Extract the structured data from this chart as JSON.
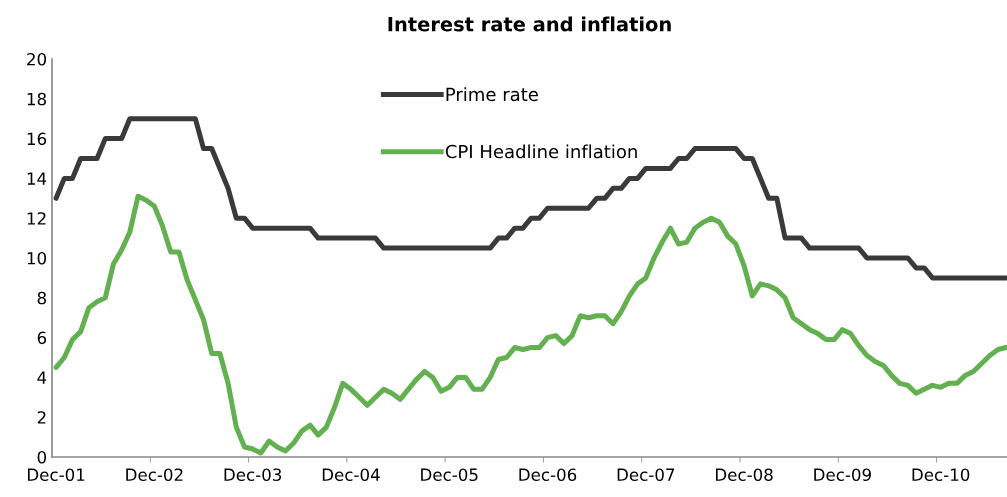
{
  "chart_data": {
    "type": "line",
    "title": "Interest rate and inflation",
    "categories": [
      "Dec-01",
      null,
      null,
      null,
      null,
      null,
      null,
      null,
      null,
      null,
      null,
      null,
      "Dec-02",
      null,
      null,
      null,
      null,
      null,
      null,
      null,
      null,
      null,
      null,
      null,
      "Dec-03",
      null,
      null,
      null,
      null,
      null,
      null,
      null,
      null,
      null,
      null,
      null,
      "Dec-04",
      null,
      null,
      null,
      null,
      null,
      null,
      null,
      null,
      null,
      null,
      null,
      "Dec-05",
      null,
      null,
      null,
      null,
      null,
      null,
      null,
      null,
      null,
      null,
      null,
      "Dec-06",
      null,
      null,
      null,
      null,
      null,
      null,
      null,
      null,
      null,
      null,
      null,
      "Dec-07",
      null,
      null,
      null,
      null,
      null,
      null,
      null,
      null,
      null,
      null,
      null,
      "Dec-08",
      null,
      null,
      null,
      null,
      null,
      null,
      null,
      null,
      null,
      null,
      null,
      "Dec-09",
      null,
      null,
      null,
      null,
      null,
      null,
      null,
      null,
      null,
      null,
      null,
      "Dec-10",
      null,
      null,
      null,
      null,
      null,
      null,
      null,
      null
    ],
    "series": [
      {
        "name": "Prime rate",
        "color": "#3a3a3a",
        "values": [
          13,
          14,
          14,
          15,
          15,
          15,
          16,
          16,
          16,
          17,
          17,
          17,
          17,
          17,
          17,
          17,
          17,
          17,
          15.5,
          15.5,
          14.5,
          13.5,
          12,
          12,
          11.5,
          11.5,
          11.5,
          11.5,
          11.5,
          11.5,
          11.5,
          11.5,
          11,
          11,
          11,
          11,
          11,
          11,
          11,
          11,
          10.5,
          10.5,
          10.5,
          10.5,
          10.5,
          10.5,
          10.5,
          10.5,
          10.5,
          10.5,
          10.5,
          10.5,
          10.5,
          10.5,
          11,
          11,
          11.5,
          11.5,
          12,
          12,
          12.5,
          12.5,
          12.5,
          12.5,
          12.5,
          12.5,
          13,
          13,
          13.5,
          13.5,
          14,
          14,
          14.5,
          14.5,
          14.5,
          14.5,
          15,
          15,
          15.5,
          15.5,
          15.5,
          15.5,
          15.5,
          15.5,
          15,
          15,
          14,
          13,
          13,
          11,
          11,
          11,
          10.5,
          10.5,
          10.5,
          10.5,
          10.5,
          10.5,
          10.5,
          10,
          10,
          10,
          10,
          10,
          10,
          9.5,
          9.5,
          9,
          9,
          9,
          9,
          9,
          9,
          9,
          9,
          9,
          9
        ]
      },
      {
        "name": "CPI Headline inflation",
        "color": "#62b04f",
        "values": [
          4.5,
          5.0,
          5.9,
          6.3,
          7.5,
          7.8,
          8.0,
          9.7,
          10.4,
          11.3,
          13.1,
          12.9,
          12.6,
          11.6,
          10.3,
          10.3,
          8.9,
          7.9,
          6.9,
          5.2,
          5.2,
          3.7,
          1.5,
          0.5,
          0.4,
          0.2,
          0.8,
          0.5,
          0.3,
          0.7,
          1.3,
          1.6,
          1.1,
          1.5,
          2.5,
          3.7,
          3.4,
          3.0,
          2.6,
          3.0,
          3.4,
          3.2,
          2.9,
          3.4,
          3.9,
          4.3,
          4.0,
          3.3,
          3.5,
          4.0,
          4.0,
          3.4,
          3.4,
          4.0,
          4.9,
          5.0,
          5.5,
          5.4,
          5.5,
          5.5,
          6.0,
          6.1,
          5.7,
          6.1,
          7.1,
          7.0,
          7.1,
          7.1,
          6.7,
          7.3,
          8.1,
          8.7,
          9.0,
          10.0,
          10.8,
          11.5,
          10.7,
          10.8,
          11.5,
          11.8,
          12.0,
          11.8,
          11.1,
          10.7,
          9.6,
          8.1,
          8.7,
          8.6,
          8.4,
          8.0,
          7.0,
          6.7,
          6.4,
          6.2,
          5.9,
          5.9,
          6.4,
          6.2,
          5.6,
          5.1,
          4.8,
          4.6,
          4.1,
          3.7,
          3.6,
          3.2,
          3.4,
          3.6,
          3.5,
          3.7,
          3.7,
          4.1,
          4.3,
          4.7,
          5.1,
          5.4,
          5.5
        ]
      }
    ],
    "ylim": [
      0,
      20
    ],
    "yticks": [
      0,
      2,
      4,
      6,
      8,
      10,
      12,
      14,
      16,
      18,
      20
    ],
    "legend": "top",
    "marker": "none",
    "line_style": "solid",
    "grid": false
  }
}
